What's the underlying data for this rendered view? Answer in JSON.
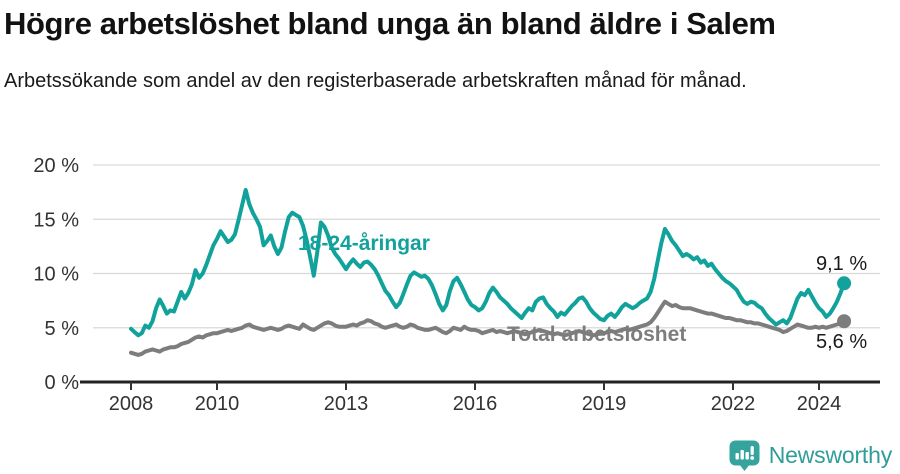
{
  "header": {
    "title": "Högre arbetslöshet bland unga än bland äldre i Salem",
    "subtitle": "Arbetssökande som andel av den registerbaserade arbetskraften månad för månad."
  },
  "footer": {
    "brand": "Newsworthy",
    "logo_icon": "bar-chart-pin-icon"
  },
  "colors": {
    "youth_line": "#10a29b",
    "total_line": "#7d7d7d",
    "grid": "#d9d9d9",
    "axis": "#222222",
    "tick_text": "#333333",
    "value_text": "#1a1a1a",
    "brand": "#2f9d98",
    "badge": "#35a39e"
  },
  "chart_data": {
    "type": "line",
    "x_unit": "month",
    "x_start": "2008-01",
    "x_end": "2024-08",
    "grid": "horizontal",
    "legend_position": "inline-labels",
    "ylim": [
      0,
      20
    ],
    "y_ticks": [
      0,
      5,
      10,
      15,
      20
    ],
    "y_tick_labels": [
      "0 %",
      "5 %",
      "10 %",
      "15 %",
      "20 %"
    ],
    "x_tick_years": [
      2008,
      2010,
      2013,
      2016,
      2019,
      2022,
      2024
    ],
    "x_tick_labels": [
      "2008",
      "2010",
      "2013",
      "2016",
      "2019",
      "2022",
      "2024"
    ],
    "series": [
      {
        "name": "Total arbetslöshet",
        "color": "#7d7d7d",
        "end_value_label": "5,6 %",
        "values": [
          2.7,
          2.6,
          2.5,
          2.6,
          2.8,
          2.9,
          3.0,
          2.9,
          2.8,
          3.0,
          3.1,
          3.2,
          3.2,
          3.3,
          3.5,
          3.6,
          3.7,
          3.9,
          4.1,
          4.2,
          4.1,
          4.3,
          4.4,
          4.5,
          4.5,
          4.6,
          4.7,
          4.8,
          4.7,
          4.8,
          4.9,
          5.0,
          5.2,
          5.3,
          5.1,
          5.0,
          4.9,
          4.8,
          4.9,
          5.0,
          4.9,
          4.8,
          4.9,
          5.1,
          5.2,
          5.1,
          5.0,
          4.9,
          5.3,
          5.1,
          4.9,
          4.8,
          5.0,
          5.2,
          5.4,
          5.5,
          5.4,
          5.2,
          5.1,
          5.1,
          5.1,
          5.2,
          5.3,
          5.2,
          5.4,
          5.5,
          5.7,
          5.6,
          5.4,
          5.3,
          5.1,
          5.0,
          5.1,
          5.2,
          5.3,
          5.1,
          5.0,
          5.1,
          5.3,
          5.2,
          5.0,
          4.9,
          4.8,
          4.8,
          4.9,
          5.0,
          4.8,
          4.6,
          4.5,
          4.7,
          5.0,
          4.9,
          4.8,
          5.1,
          4.9,
          4.8,
          4.8,
          4.7,
          4.5,
          4.6,
          4.7,
          4.8,
          4.6,
          4.7,
          4.6,
          4.5,
          4.6,
          4.7,
          4.6,
          4.5,
          4.4,
          4.5,
          4.6,
          4.7,
          4.8,
          4.7,
          4.6,
          4.5,
          4.4,
          4.5,
          4.4,
          4.3,
          4.4,
          4.5,
          4.6,
          4.7,
          4.6,
          4.5,
          4.4,
          4.3,
          4.4,
          4.5,
          4.5,
          4.6,
          4.7,
          4.6,
          4.7,
          4.8,
          4.9,
          4.8,
          4.9,
          5.0,
          5.1,
          5.2,
          5.3,
          5.5,
          5.9,
          6.4,
          6.9,
          7.4,
          7.2,
          7.0,
          7.1,
          6.9,
          6.8,
          6.8,
          6.8,
          6.7,
          6.6,
          6.5,
          6.4,
          6.3,
          6.3,
          6.2,
          6.1,
          6.0,
          5.9,
          5.9,
          5.8,
          5.7,
          5.7,
          5.6,
          5.5,
          5.5,
          5.4,
          5.4,
          5.3,
          5.2,
          5.1,
          5.0,
          4.9,
          4.8,
          4.6,
          4.7,
          4.9,
          5.1,
          5.3,
          5.2,
          5.1,
          5.0,
          5.0,
          5.1,
          5.0,
          5.1,
          5.0,
          5.1,
          5.2,
          5.3,
          5.4,
          5.6
        ]
      },
      {
        "name": "18-24-åringar",
        "color": "#10a29b",
        "end_value_label": "9,1 %",
        "values": [
          4.9,
          4.6,
          4.3,
          4.5,
          5.2,
          5.0,
          5.6,
          6.8,
          7.6,
          7.0,
          6.3,
          6.6,
          6.5,
          7.4,
          8.3,
          7.7,
          8.2,
          9.0,
          10.3,
          9.6,
          10.0,
          10.8,
          11.7,
          12.6,
          13.2,
          13.9,
          13.4,
          12.9,
          13.1,
          13.6,
          14.9,
          16.3,
          17.7,
          16.4,
          15.6,
          15.0,
          14.3,
          12.6,
          13.0,
          13.5,
          12.5,
          11.8,
          12.4,
          13.9,
          15.2,
          15.6,
          15.4,
          15.2,
          14.4,
          13.1,
          11.5,
          9.8,
          12.0,
          14.7,
          14.3,
          13.5,
          12.4,
          11.8,
          11.4,
          10.9,
          10.4,
          10.9,
          11.3,
          10.9,
          10.6,
          11.0,
          11.1,
          10.8,
          10.4,
          9.8,
          9.1,
          8.4,
          8.0,
          7.4,
          6.9,
          7.3,
          8.1,
          9.0,
          9.8,
          10.1,
          9.9,
          9.7,
          9.8,
          9.5,
          8.9,
          8.1,
          7.2,
          6.6,
          7.1,
          8.4,
          9.3,
          9.6,
          9.0,
          8.3,
          7.6,
          7.1,
          6.9,
          6.6,
          6.8,
          7.4,
          8.2,
          8.7,
          8.3,
          7.8,
          7.5,
          7.2,
          6.8,
          6.5,
          6.2,
          5.9,
          6.4,
          6.8,
          6.6,
          7.4,
          7.7,
          7.8,
          7.2,
          6.8,
          6.5,
          6.0,
          6.4,
          6.2,
          6.6,
          7.0,
          7.3,
          7.7,
          7.8,
          7.4,
          6.8,
          6.4,
          6.1,
          5.8,
          5.7,
          6.1,
          6.3,
          6.0,
          6.4,
          6.9,
          7.2,
          7.0,
          6.8,
          7.0,
          7.3,
          7.5,
          7.7,
          8.3,
          9.5,
          11.2,
          12.8,
          14.1,
          13.6,
          13.0,
          12.6,
          12.1,
          11.6,
          11.8,
          11.6,
          11.3,
          11.5,
          11.0,
          11.2,
          10.7,
          10.9,
          10.4,
          10.0,
          9.6,
          9.3,
          9.1,
          8.8,
          8.5,
          7.9,
          7.4,
          7.2,
          7.4,
          7.3,
          7.0,
          6.8,
          6.3,
          5.9,
          5.6,
          5.3,
          5.5,
          5.7,
          5.4,
          5.9,
          6.8,
          7.7,
          8.2,
          8.0,
          8.5,
          7.9,
          7.3,
          6.8,
          6.5,
          6.0,
          6.3,
          6.8,
          7.4,
          8.2,
          9.1
        ]
      }
    ]
  }
}
